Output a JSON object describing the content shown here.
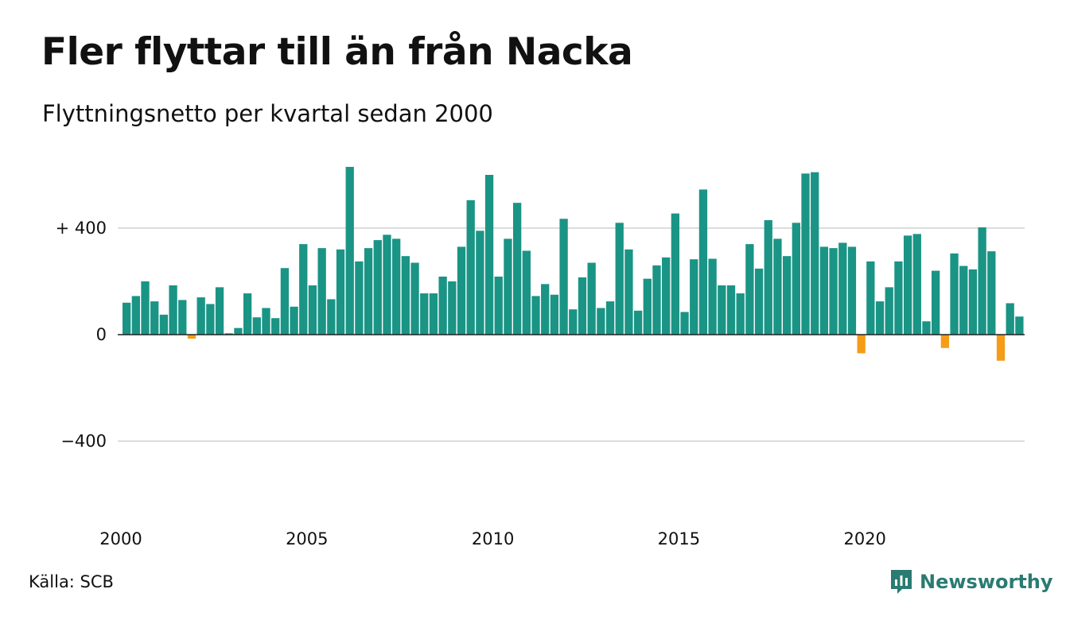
{
  "header": {
    "title": "Fler flyttar till än från Nacka",
    "subtitle": "Flyttningsnetto per kvartal sedan 2000"
  },
  "footer": {
    "source": "Källa: SCB",
    "brand": "Newsworthy"
  },
  "colors": {
    "positive": "#1a9485",
    "negative": "#f59c19",
    "grid": "#dddddd",
    "brand": "#2a7b72"
  },
  "chart_data": {
    "type": "bar",
    "title": "Fler flyttar till än från Nacka",
    "subtitle": "Flyttningsnetto per kvartal sedan 2000",
    "xlabel": "",
    "ylabel": "",
    "ylim": [
      -600,
      660
    ],
    "yticks": [
      {
        "value": 400,
        "label": "+ 400"
      },
      {
        "value": 0,
        "label": "0"
      },
      {
        "value": -400,
        "label": "−400"
      }
    ],
    "xticks": [
      {
        "year": 2000,
        "label": "2000"
      },
      {
        "year": 2005,
        "label": "2005"
      },
      {
        "year": 2010,
        "label": "2010"
      },
      {
        "year": 2015,
        "label": "2015"
      },
      {
        "year": 2020,
        "label": "2020"
      }
    ],
    "grid": true,
    "start_year": 2000,
    "values": [
      120,
      145,
      200,
      125,
      75,
      185,
      130,
      -15,
      140,
      115,
      178,
      5,
      25,
      155,
      65,
      100,
      62,
      250,
      105,
      340,
      185,
      325,
      133,
      320,
      630,
      275,
      325,
      355,
      375,
      360,
      295,
      270,
      155,
      155,
      218,
      200,
      330,
      505,
      390,
      600,
      218,
      360,
      495,
      315,
      145,
      190,
      150,
      435,
      95,
      215,
      270,
      100,
      125,
      420,
      320,
      90,
      210,
      260,
      290,
      455,
      85,
      283,
      545,
      285,
      185,
      185,
      155,
      340,
      248,
      430,
      360,
      295,
      420,
      605,
      610,
      330,
      325,
      345,
      330,
      -70,
      275,
      125,
      178,
      275,
      372,
      378,
      50,
      240,
      -50,
      305,
      258,
      245,
      403,
      313,
      -98,
      118,
      68
    ]
  }
}
